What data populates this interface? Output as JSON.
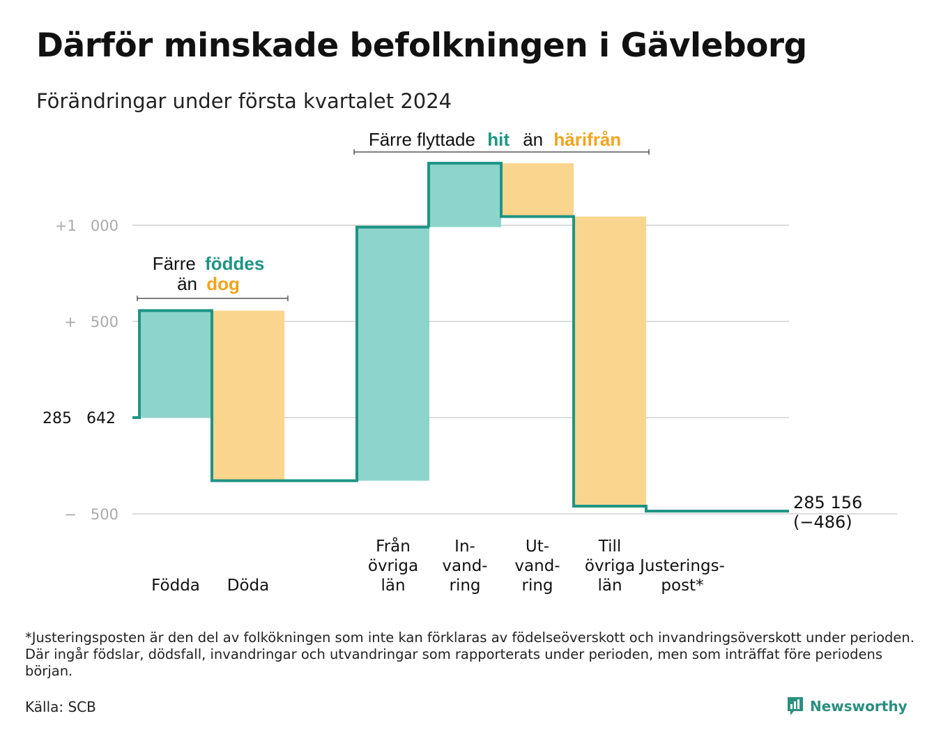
{
  "header": {
    "title": "Därför minskade befolkningen i Gävleborg",
    "subtitle": "Förändringar under första kvartalet 2024"
  },
  "colors": {
    "increase": "#8dd5cc",
    "decrease": "#f9d58e",
    "line": "#1e9483",
    "accent_orange": "#f2a41c",
    "grid": "#dddddd",
    "tick_text": "#aaaaaa"
  },
  "annotations": {
    "births": {
      "prefix": "Färre",
      "highlight1": "föddes",
      "middle": "än",
      "highlight2": "dog"
    },
    "migration": {
      "prefix": "Färre flyttade",
      "highlight1": "hit",
      "middle": "än",
      "highlight2": "härifrån"
    }
  },
  "chart_data": {
    "type": "waterfall",
    "start_label": "285   642",
    "start_value": 285642,
    "end_label": "285 156",
    "end_change_label": "(−486)",
    "yticks": [
      {
        "label": "+1   000",
        "value": 1000
      },
      {
        "label": "+   500",
        "value": 500
      },
      {
        "label": "−   500",
        "value": -500
      }
    ],
    "ylim": [
      -500,
      1350
    ],
    "grid": true,
    "categories": [
      {
        "label": [
          "Födda"
        ],
        "change": 556,
        "kind": "increase"
      },
      {
        "label": [
          "Döda"
        ],
        "change": -884,
        "kind": "decrease"
      },
      {
        "label": [
          "Från",
          "övriga",
          "län"
        ],
        "change": 1318,
        "kind": "increase"
      },
      {
        "label": [
          "In-",
          "vand-",
          "ring"
        ],
        "change": 332,
        "kind": "increase"
      },
      {
        "label": [
          "Ut-",
          "vand-",
          "ring"
        ],
        "change": -277,
        "kind": "decrease"
      },
      {
        "label": [
          "Till",
          "övriga",
          "län"
        ],
        "change": -1505,
        "kind": "decrease"
      },
      {
        "label": [
          "Justerings-",
          "post*"
        ],
        "change": -26,
        "kind": "adjustment"
      }
    ]
  },
  "footnote": "*Justeringsposten är den del av folkökningen som inte kan förklaras av födelseöverskott och invandringsöverskott under perioden. Där ingår födslar, dödsfall, invandringar och utvandringar som rapporterats under perioden, men som inträffat före periodens början.",
  "source": "Källa: SCB",
  "brand": {
    "name": "Newsworthy",
    "icon": "chart-logo-icon"
  }
}
